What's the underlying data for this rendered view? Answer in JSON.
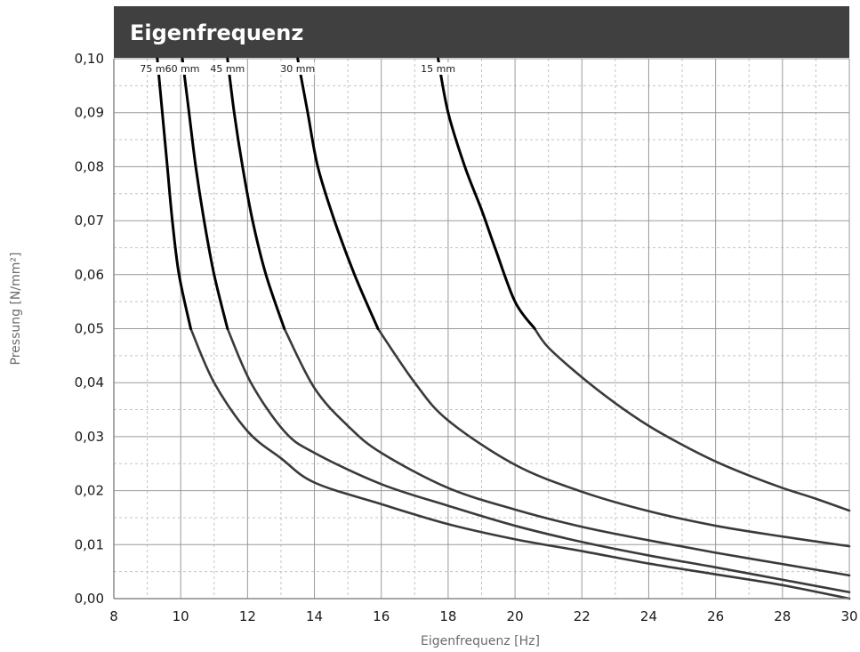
{
  "chart_data": {
    "type": "line",
    "title": "Eigenfrequenz",
    "xlabel": "Eigenfrequenz [Hz]",
    "ylabel": "Pressung [N/mm²]",
    "xlim": [
      8,
      30
    ],
    "ylim": [
      0,
      0.1
    ],
    "x_ticks": [
      "8",
      "10",
      "12",
      "14",
      "16",
      "18",
      "20",
      "22",
      "24",
      "26",
      "28",
      "30"
    ],
    "y_ticks": [
      "0,00",
      "0,01",
      "0,02",
      "0,03",
      "0,04",
      "0,05",
      "0,06",
      "0,07",
      "0,08",
      "0,09",
      "0,10"
    ],
    "grid": true,
    "series": [
      {
        "name": "75 mm",
        "points": [
          [
            9.3,
            0.1
          ],
          [
            9.45,
            0.09
          ],
          [
            9.6,
            0.08
          ],
          [
            9.75,
            0.07
          ],
          [
            9.95,
            0.06
          ],
          [
            10.3,
            0.05
          ],
          [
            11.0,
            0.04
          ],
          [
            12.0,
            0.031
          ],
          [
            13.0,
            0.026
          ],
          [
            14.0,
            0.0215
          ],
          [
            16.0,
            0.0175
          ],
          [
            18.0,
            0.0138
          ],
          [
            20.0,
            0.011
          ],
          [
            22.0,
            0.0088
          ],
          [
            24.0,
            0.0065
          ],
          [
            26.0,
            0.0045
          ],
          [
            28.0,
            0.0025
          ],
          [
            30.0,
            0.0
          ]
        ]
      },
      {
        "name": "60 mm",
        "points": [
          [
            10.05,
            0.1
          ],
          [
            10.25,
            0.09
          ],
          [
            10.45,
            0.08
          ],
          [
            10.7,
            0.07
          ],
          [
            11.0,
            0.06
          ],
          [
            11.4,
            0.05
          ],
          [
            12.1,
            0.04
          ],
          [
            13.1,
            0.031
          ],
          [
            14.0,
            0.027
          ],
          [
            16.0,
            0.0212
          ],
          [
            18.0,
            0.0172
          ],
          [
            20.0,
            0.0135
          ],
          [
            22.0,
            0.0105
          ],
          [
            24.0,
            0.008
          ],
          [
            26.0,
            0.0058
          ],
          [
            28.0,
            0.0035
          ],
          [
            30.0,
            0.0012
          ]
        ]
      },
      {
        "name": "45 mm",
        "points": [
          [
            11.4,
            0.1
          ],
          [
            11.6,
            0.09
          ],
          [
            11.85,
            0.08
          ],
          [
            12.15,
            0.07
          ],
          [
            12.55,
            0.06
          ],
          [
            13.1,
            0.05
          ],
          [
            14.0,
            0.039
          ],
          [
            15.0,
            0.032
          ],
          [
            16.0,
            0.027
          ],
          [
            18.0,
            0.0205
          ],
          [
            20.0,
            0.0165
          ],
          [
            22.0,
            0.0133
          ],
          [
            24.0,
            0.0108
          ],
          [
            26.0,
            0.0085
          ],
          [
            28.0,
            0.0064
          ],
          [
            30.0,
            0.0043
          ]
        ]
      },
      {
        "name": "30 mm",
        "points": [
          [
            13.5,
            0.1
          ],
          [
            13.8,
            0.09
          ],
          [
            14.1,
            0.08
          ],
          [
            14.6,
            0.07
          ],
          [
            15.2,
            0.06
          ],
          [
            15.9,
            0.05
          ],
          [
            17.0,
            0.04
          ],
          [
            18.0,
            0.033
          ],
          [
            20.0,
            0.0248
          ],
          [
            22.0,
            0.0198
          ],
          [
            24.0,
            0.0162
          ],
          [
            26.0,
            0.0135
          ],
          [
            28.0,
            0.0115
          ],
          [
            30.0,
            0.0097
          ]
        ]
      },
      {
        "name": "15 mm",
        "points": [
          [
            17.7,
            0.1
          ],
          [
            18.0,
            0.09
          ],
          [
            18.5,
            0.08
          ],
          [
            19.0,
            0.072
          ],
          [
            19.4,
            0.065
          ],
          [
            20.0,
            0.055
          ],
          [
            21.0,
            0.0465
          ],
          [
            22.0,
            0.041
          ],
          [
            23.0,
            0.0362
          ],
          [
            24.0,
            0.032
          ],
          [
            25.0,
            0.0285
          ],
          [
            26.0,
            0.0254
          ],
          [
            27.0,
            0.0228
          ],
          [
            28.0,
            0.0205
          ],
          [
            29.0,
            0.0185
          ],
          [
            30.0,
            0.0163
          ]
        ]
      }
    ]
  },
  "colors": {
    "title_bar": "#404040",
    "title_text": "#ffffff",
    "curve": "#3a3a3a",
    "curve_upper": "#000000",
    "grid_major": "#9a9a9a",
    "grid_minor": "#c4c4c4",
    "axis": "#8a8a8a"
  }
}
